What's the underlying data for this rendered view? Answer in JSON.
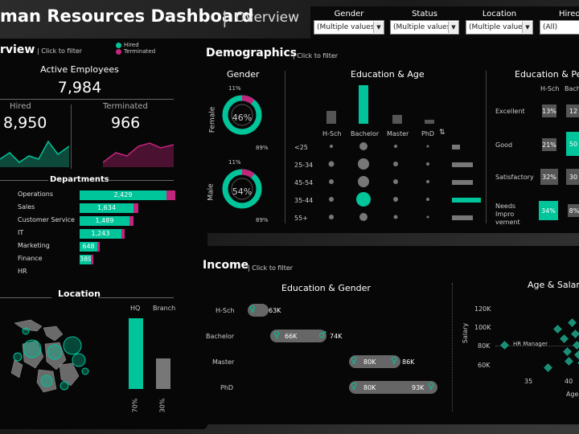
{
  "header": {
    "title": "man Resources Dashboard",
    "subtitle": "Overview"
  },
  "filters": [
    {
      "label": "Gender",
      "value": "(Multiple values)"
    },
    {
      "label": "Status",
      "value": "(Multiple values)"
    },
    {
      "label": "Location",
      "value": "(Multiple values)"
    },
    {
      "label": "Hired",
      "value": "(All)"
    }
  ],
  "overview": {
    "title": "rview",
    "click_hint": "Click to filter",
    "legend": [
      {
        "label": "Hired",
        "color": "#00c49a"
      },
      {
        "label": "Terminated",
        "color": "#c2257c"
      }
    ],
    "active_label": "Active Employees",
    "active_value": "7,984",
    "hired_label": "Hired",
    "hired_value": "8,950",
    "terminated_label": "Terminated",
    "terminated_value": "966",
    "departments_title": "Departments",
    "departments": [
      {
        "name": "Operations",
        "hired": "2,429",
        "hired_frac": 1.0,
        "term_frac": 0.1
      },
      {
        "name": "Sales",
        "hired": "1,634",
        "hired_frac": 0.62,
        "term_frac": 0.06
      },
      {
        "name": "Customer Service",
        "hired": "1,489",
        "hired_frac": 0.57,
        "term_frac": 0.05
      },
      {
        "name": "IT",
        "hired": "1,243",
        "hired_frac": 0.48,
        "term_frac": 0.04
      },
      {
        "name": "Marketing",
        "hired": "648",
        "hired_frac": 0.2,
        "term_frac": 0.02
      },
      {
        "name": "Finance",
        "hired": "389",
        "hired_frac": 0.13,
        "term_frac": 0.01
      },
      {
        "name": "HR",
        "hired": "",
        "hired_frac": 0.0,
        "term_frac": 0.0
      }
    ],
    "location_title": "Location",
    "hq_label": "HQ",
    "branch_label": "Branch",
    "hq_pct": "70%",
    "branch_pct": "30%"
  },
  "demographics": {
    "title": "Demographics",
    "click_hint": "Click to filter",
    "gender_title": "Gender",
    "female_label": "Female",
    "male_label": "Male",
    "female": {
      "center": "46%",
      "top": "11%",
      "bottom": "89%",
      "pink_frac": 0.11
    },
    "male": {
      "center": "54%",
      "top": "11%",
      "bottom": "89%",
      "pink_frac": 0.11
    },
    "edu_age_title": "Education & Age",
    "edu_levels": [
      "H-Sch",
      "Bachelor",
      "Master",
      "PhD"
    ],
    "age_groups": [
      "<25",
      "25-34",
      "45-54",
      "35-44",
      "55+"
    ],
    "edu_perf_title": "Education & Pe",
    "perf_cols": [
      "H-Sch",
      "Bach"
    ],
    "perf_rows": [
      {
        "label": "Excellent",
        "values": [
          "13%",
          "12"
        ]
      },
      {
        "label": "Good",
        "values": [
          "21%",
          "50"
        ]
      },
      {
        "label": "Satisfactory",
        "values": [
          "32%",
          "30"
        ]
      },
      {
        "label": "Needs Impro vement",
        "values": [
          "34%",
          "8%"
        ]
      }
    ]
  },
  "income": {
    "title": "Income",
    "click_hint": "Click to filter",
    "edu_gender_title": "Education & Gender",
    "rows": [
      {
        "label": "H-Sch",
        "female": "63K",
        "male": ""
      },
      {
        "label": "Bachelor",
        "female": "66K",
        "male": "74K"
      },
      {
        "label": "Master",
        "female": "80K",
        "male": "86K"
      },
      {
        "label": "PhD",
        "female": "80K",
        "male": "93K"
      }
    ],
    "age_salary_title": "Age & Salar",
    "y_label": "Salary",
    "y_ticks": [
      "120K",
      "100K",
      "80K",
      "60K"
    ],
    "x_ticks": [
      "35",
      "40"
    ],
    "x_label": "Age",
    "annotation": "HR Manager"
  },
  "colors": {
    "teal": "#00c49a",
    "pink": "#c2257c",
    "card": "#070707"
  }
}
